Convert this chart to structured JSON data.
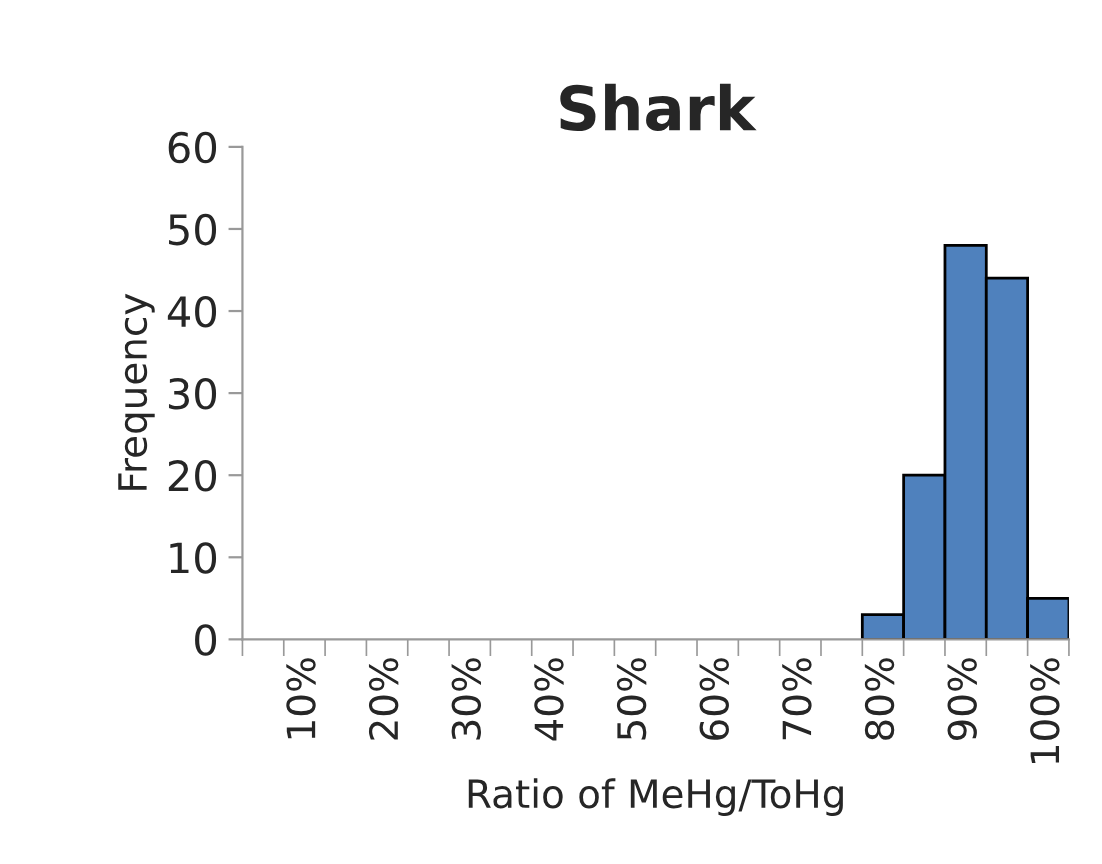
{
  "chart_data": {
    "type": "bar",
    "title": "Shark",
    "xlabel": "Ratio of MeHg/ToHg",
    "ylabel": "Frequency",
    "categories": [
      null,
      "10%",
      null,
      "20%",
      null,
      "30%",
      null,
      "40%",
      null,
      "50%",
      null,
      "60%",
      null,
      "70%",
      null,
      "80%",
      null,
      "90%",
      null,
      "100%"
    ],
    "values": [
      0,
      0,
      0,
      0,
      0,
      0,
      0,
      0,
      0,
      0,
      0,
      0,
      0,
      0,
      0,
      3,
      20,
      48,
      44,
      5
    ],
    "color": "#4f81bd",
    "ylim": [
      0,
      60
    ],
    "yticks": [
      0,
      10,
      20,
      30,
      40,
      50,
      60
    ],
    "grid": false,
    "legend": false
  }
}
